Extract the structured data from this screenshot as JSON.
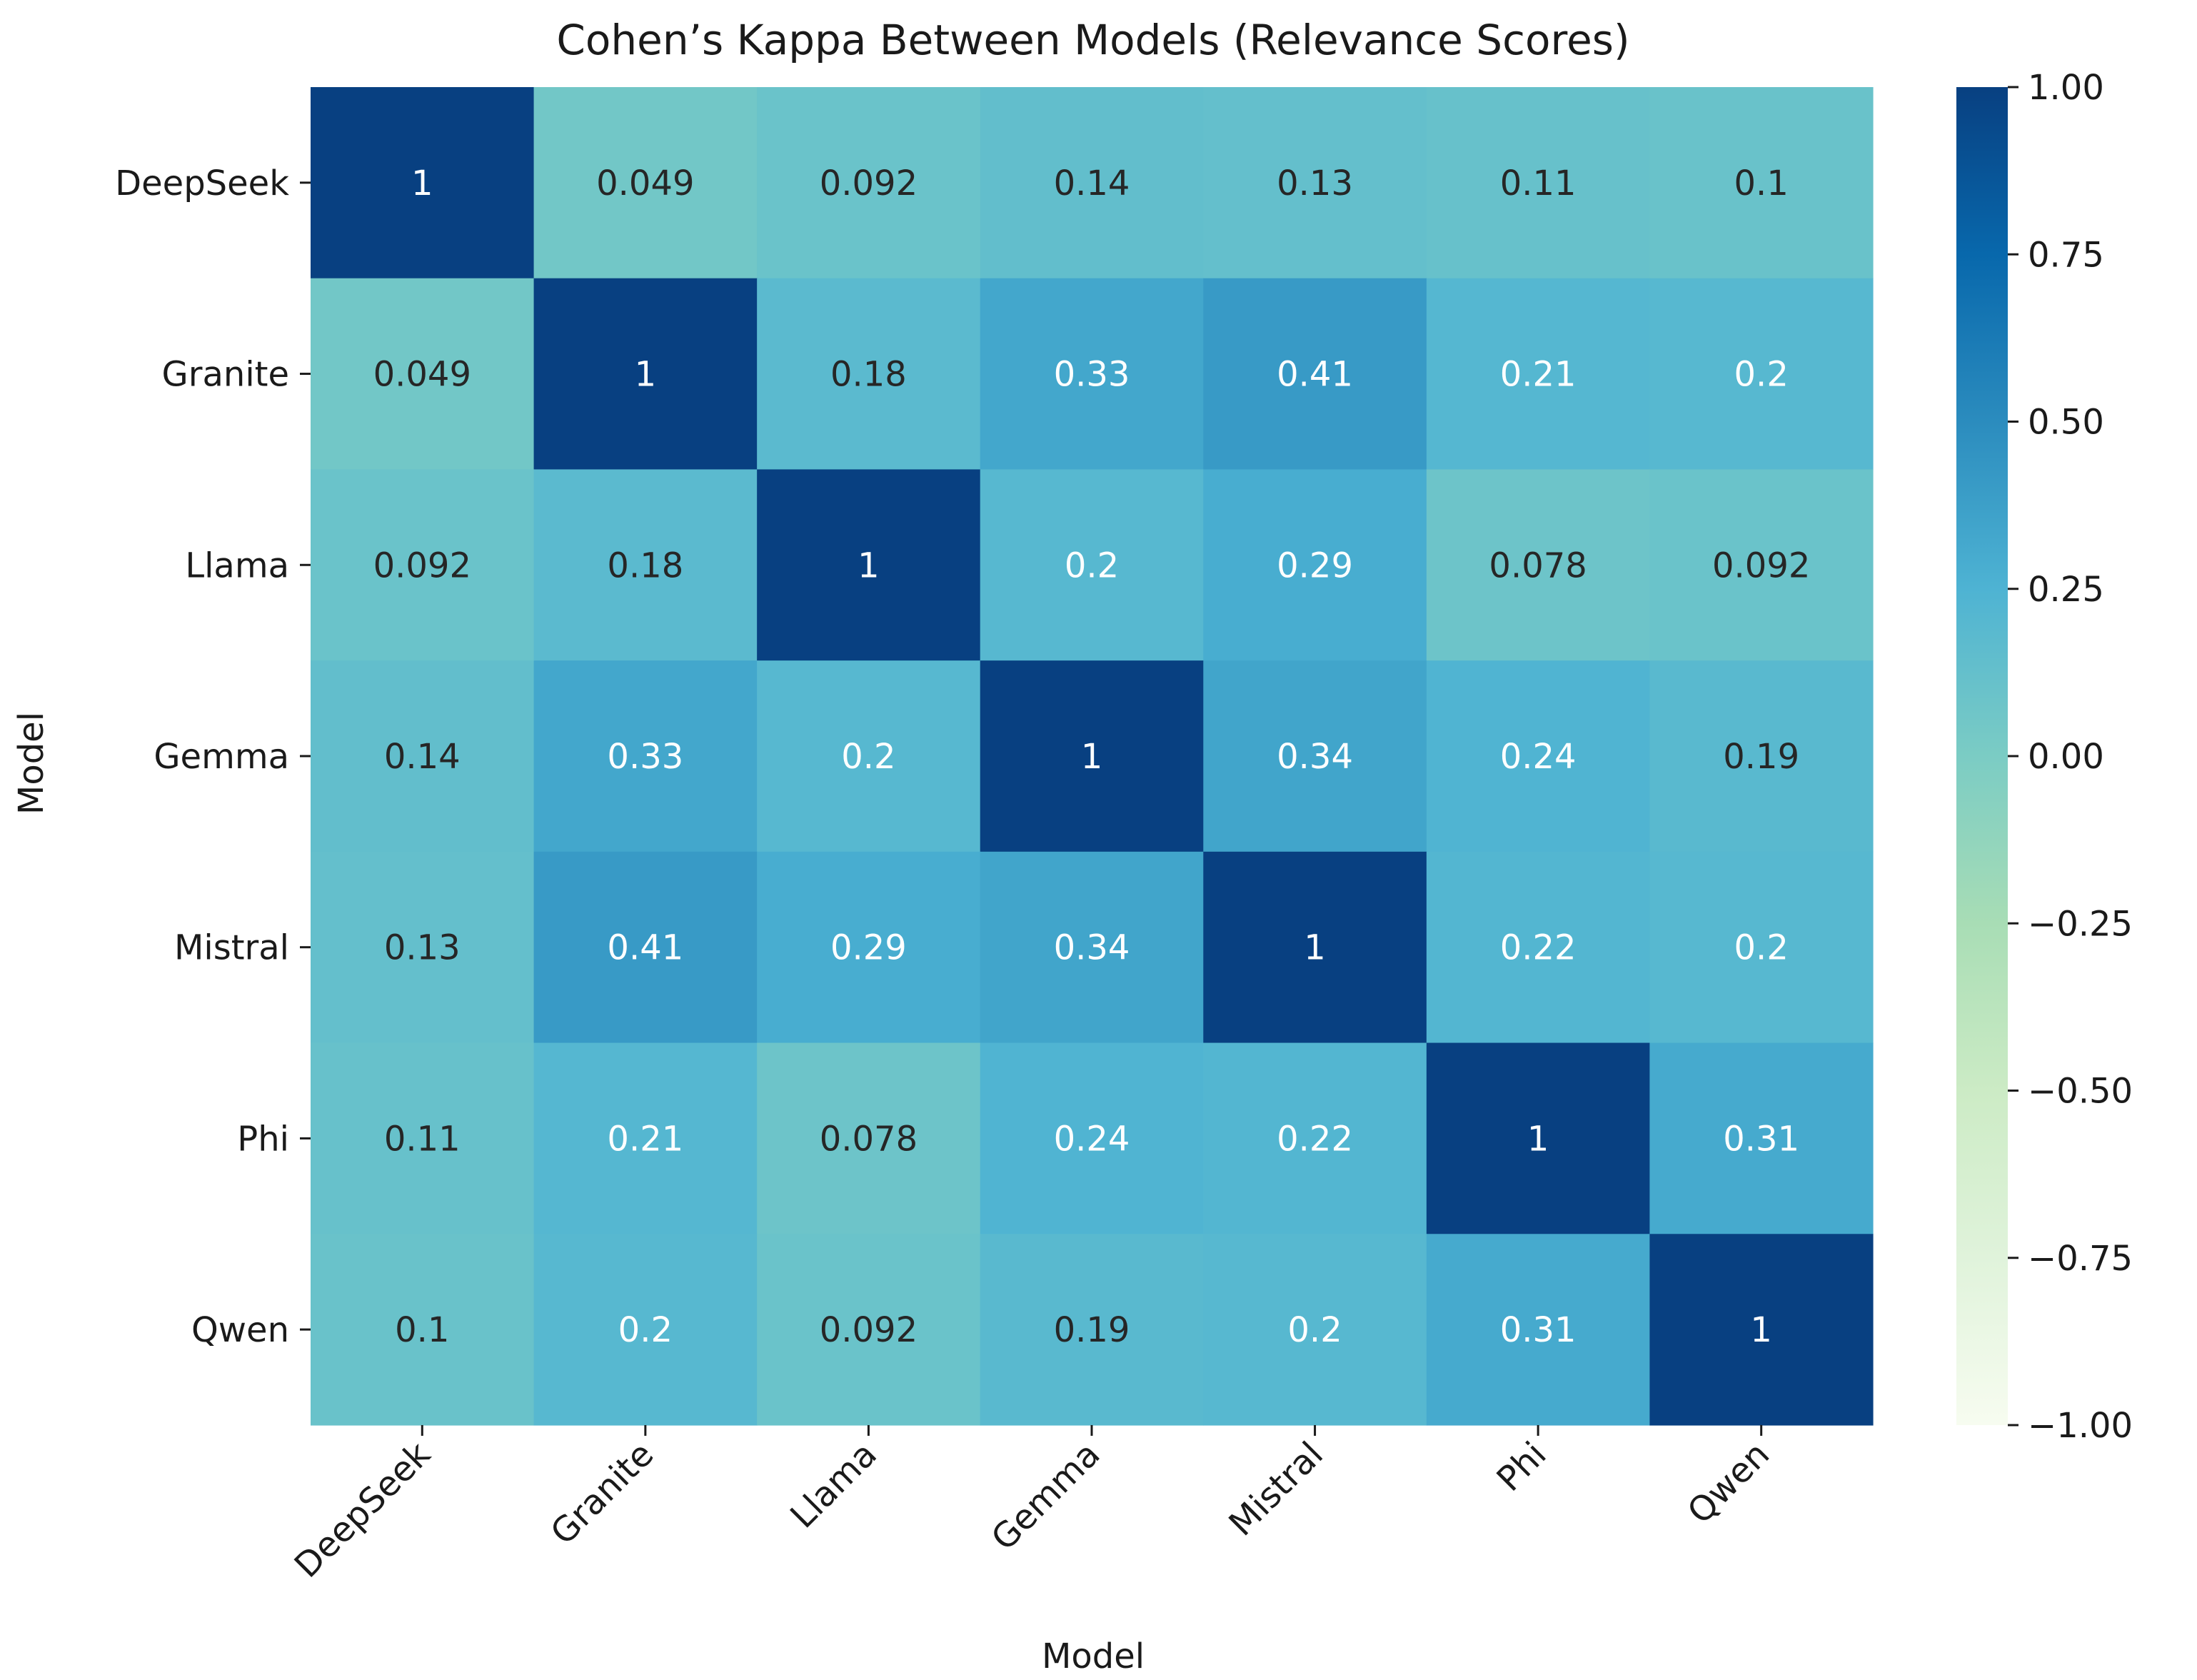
{
  "chart_data": {
    "type": "heatmap",
    "title": "Cohen’s Kappa Between Models (Relevance Scores)",
    "xlabel": "Model",
    "ylabel": "Model",
    "categories": [
      "DeepSeek",
      "Granite",
      "Llama",
      "Gemma",
      "Mistral",
      "Phi",
      "Qwen"
    ],
    "matrix": [
      [
        1,
        0.049,
        0.092,
        0.14,
        0.13,
        0.11,
        0.1
      ],
      [
        0.049,
        1,
        0.18,
        0.33,
        0.41,
        0.21,
        0.2
      ],
      [
        0.092,
        0.18,
        1,
        0.2,
        0.29,
        0.078,
        0.092
      ],
      [
        0.14,
        0.33,
        0.2,
        1,
        0.34,
        0.24,
        0.19
      ],
      [
        0.13,
        0.41,
        0.29,
        0.34,
        1,
        0.22,
        0.2
      ],
      [
        0.11,
        0.21,
        0.078,
        0.24,
        0.22,
        1,
        0.31
      ],
      [
        0.1,
        0.2,
        0.092,
        0.19,
        0.2,
        0.31,
        1
      ]
    ],
    "cell_labels": [
      [
        "1",
        "0.049",
        "0.092",
        "0.14",
        "0.13",
        "0.11",
        "0.1"
      ],
      [
        "0.049",
        "1",
        "0.18",
        "0.33",
        "0.41",
        "0.21",
        "0.2"
      ],
      [
        "0.092",
        "0.18",
        "1",
        "0.2",
        "0.29",
        "0.078",
        "0.092"
      ],
      [
        "0.14",
        "0.33",
        "0.2",
        "1",
        "0.34",
        "0.24",
        "0.19"
      ],
      [
        "0.13",
        "0.41",
        "0.29",
        "0.34",
        "1",
        "0.22",
        "0.2"
      ],
      [
        "0.11",
        "0.21",
        "0.078",
        "0.24",
        "0.22",
        "1",
        "0.31"
      ],
      [
        "0.1",
        "0.2",
        "0.092",
        "0.19",
        "0.2",
        "0.31",
        "1"
      ]
    ],
    "colorbar": {
      "range": [
        -1.0,
        1.0
      ],
      "ticks": [
        1.0,
        0.75,
        0.5,
        0.25,
        0.0,
        -0.25,
        -0.5,
        -0.75,
        -1.0
      ],
      "tick_labels": [
        "1.00",
        "0.75",
        "0.50",
        "0.25",
        "0.00",
        "−0.25",
        "−0.50",
        "−0.75",
        "−1.00"
      ],
      "colormap": "GnBu",
      "colors": [
        "#f7fcf0",
        "#e0f3db",
        "#ccebc5",
        "#a8ddb5",
        "#7bccc4",
        "#4eb3d3",
        "#2b8cbe",
        "#0868ac",
        "#084081"
      ]
    }
  }
}
